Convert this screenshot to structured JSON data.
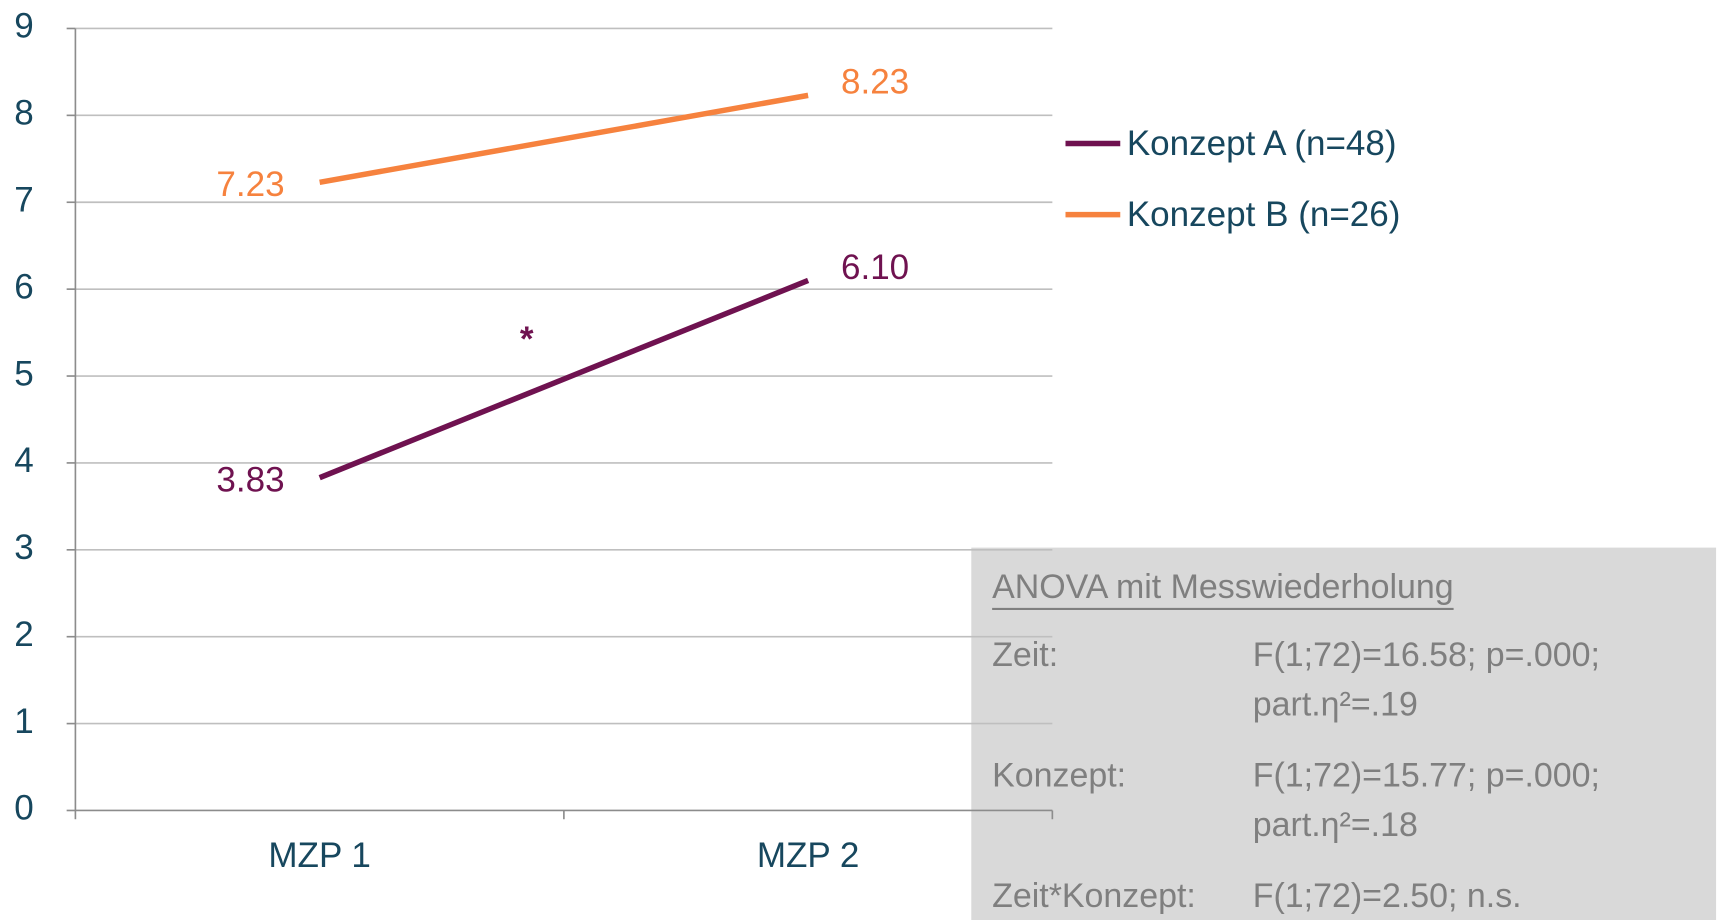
{
  "chart_data": {
    "type": "line",
    "categories": [
      "MZP 1",
      "MZP 2"
    ],
    "series": [
      {
        "name": "Konzept A (n=48)",
        "color": "#6f1250",
        "values": [
          3.83,
          6.1
        ],
        "value_labels": [
          "3.83",
          "6.10"
        ]
      },
      {
        "name": "Konzept B (n=26)",
        "color": "#f6823e",
        "values": [
          7.23,
          8.23
        ],
        "value_labels": [
          "7.23",
          "8.23"
        ]
      }
    ],
    "ylim": [
      0,
      9
    ],
    "yticks": [
      0,
      1,
      2,
      3,
      4,
      5,
      6,
      7,
      8,
      9
    ],
    "grid": true,
    "legend": "right",
    "significance_marker": "*",
    "anova": {
      "title": "ANOVA mit Messwiederholung",
      "rows": [
        {
          "label": "Zeit:",
          "lines": [
            "F(1;72)=16.58; p=.000;",
            "part.η²=.19"
          ]
        },
        {
          "label": "Konzept:",
          "lines": [
            "F(1;72)=15.77; p=.000;",
            "part.η²=.18"
          ]
        },
        {
          "label": "Zeit*Konzept:",
          "lines": [
            "F(1;72)=2.50; n.s."
          ]
        }
      ]
    }
  }
}
